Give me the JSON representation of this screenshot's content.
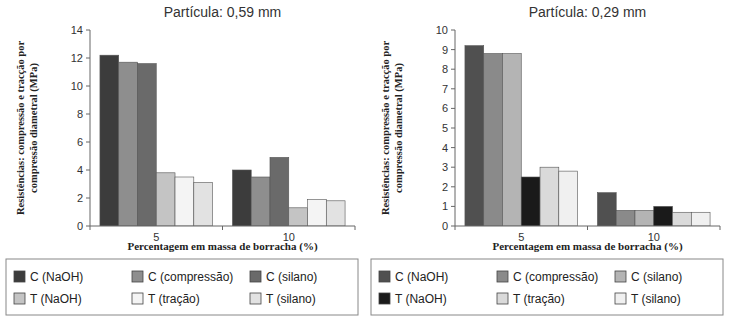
{
  "chart_data": [
    {
      "type": "bar",
      "title": "Partícula: 0,59 mm",
      "x_label": "Percentagem em massa de borracha (%)",
      "y_label": "Resistências: compressão e tracção por compressão diametral (MPa)",
      "categories": [
        "5",
        "10"
      ],
      "series": [
        {
          "name": "C (NaOH)",
          "color": "#3c3c3c",
          "values": [
            12.2,
            4.0
          ]
        },
        {
          "name": "C (compressão)",
          "color": "#8e8e8e",
          "values": [
            11.7,
            3.5
          ]
        },
        {
          "name": "C (silano)",
          "color": "#6a6a6a",
          "values": [
            11.6,
            4.9
          ]
        },
        {
          "name": "T (NaOH)",
          "color": "#c4c4c4",
          "values": [
            3.8,
            1.3
          ]
        },
        {
          "name": "T (tração)",
          "color": "#f4f4f4",
          "values": [
            3.5,
            1.9
          ]
        },
        {
          "name": "T (silano)",
          "color": "#e2e2e2",
          "values": [
            3.1,
            1.8
          ]
        }
      ],
      "ylim": [
        0,
        14
      ],
      "yticks": [
        0,
        2,
        4,
        6,
        8,
        10,
        12,
        14
      ],
      "legend": "bottom"
    },
    {
      "type": "bar",
      "title": "Partícula: 0,29 mm",
      "x_label": "Percentagem em massa de borracha (%)",
      "y_label": "Resistências: compressão e tracção por compressão diametral (MPa)",
      "categories": [
        "5",
        "10"
      ],
      "series": [
        {
          "name": "C (NaOH)",
          "color": "#505050",
          "values": [
            9.2,
            1.7
          ]
        },
        {
          "name": "C (compressão)",
          "color": "#8a8a8a",
          "values": [
            8.8,
            0.8
          ]
        },
        {
          "name": "C (silano)",
          "color": "#b4b4b4",
          "values": [
            8.8,
            0.8
          ]
        },
        {
          "name": "T (NaOH)",
          "color": "#1a1a1a",
          "values": [
            2.5,
            1.0
          ]
        },
        {
          "name": "T (tração)",
          "color": "#dadada",
          "values": [
            3.0,
            0.7
          ]
        },
        {
          "name": "T (silano)",
          "color": "#f0f0f0",
          "values": [
            2.8,
            0.7
          ]
        }
      ],
      "ylim": [
        0,
        10
      ],
      "yticks": [
        0,
        1,
        2,
        3,
        4,
        5,
        6,
        7,
        8,
        9,
        10
      ],
      "legend": "bottom"
    }
  ]
}
